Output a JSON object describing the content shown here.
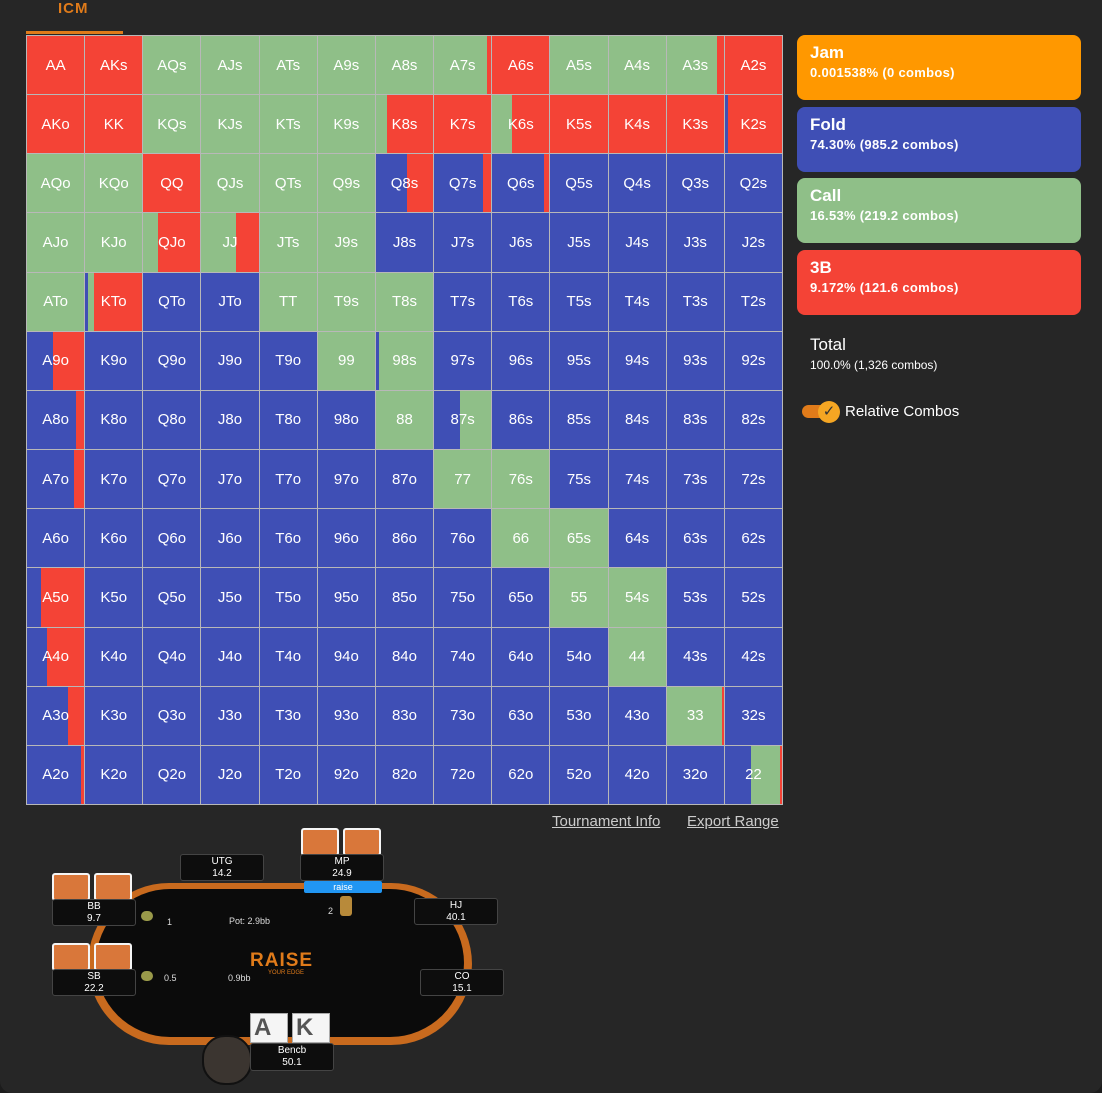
{
  "tab": "ICM",
  "actions": [
    {
      "name": "Jam",
      "stats": "0.001538% (0 combos)",
      "color": "#ff9800"
    },
    {
      "name": "Fold",
      "stats": "74.30% (985.2 combos)",
      "color": "#3f4fb5"
    },
    {
      "name": "Call",
      "stats": "16.53% (219.2 combos)",
      "color": "#8fbf88"
    },
    {
      "name": "3B",
      "stats": "9.172% (121.6 combos)",
      "color": "#f44336"
    }
  ],
  "total": {
    "label": "Total",
    "stats": "100.0% (1,326 combos)"
  },
  "toggle": "Relative Combos",
  "links": [
    "Tournament Info",
    "Export Range"
  ],
  "grid": {
    "rows": [
      [
        [
          "AA",
          0,
          0,
          100
        ],
        [
          "AKs",
          0,
          0,
          100
        ],
        [
          "AQs",
          0,
          100,
          0
        ],
        [
          "AJs",
          0,
          100,
          0
        ],
        [
          "ATs",
          0,
          100,
          0
        ],
        [
          "A9s",
          0,
          100,
          0
        ],
        [
          "A8s",
          0,
          100,
          0
        ],
        [
          "A7s",
          0,
          93,
          7
        ],
        [
          "A6s",
          0,
          0,
          100
        ],
        [
          "A5s",
          0,
          100,
          0
        ],
        [
          "A4s",
          0,
          100,
          0
        ],
        [
          "A3s",
          0,
          88,
          12
        ],
        [
          "A2s",
          0,
          0,
          100
        ]
      ],
      [
        [
          "AKo",
          0,
          0,
          100
        ],
        [
          "KK",
          0,
          0,
          100
        ],
        [
          "KQs",
          0,
          100,
          0
        ],
        [
          "KJs",
          0,
          100,
          0
        ],
        [
          "KTs",
          0,
          100,
          0
        ],
        [
          "K9s",
          0,
          100,
          0
        ],
        [
          "K8s",
          0,
          20,
          80
        ],
        [
          "K7s",
          0,
          0,
          100
        ],
        [
          "K6s",
          0,
          35,
          65
        ],
        [
          "K5s",
          0,
          0,
          100
        ],
        [
          "K4s",
          0,
          0,
          100
        ],
        [
          "K3s",
          0,
          0,
          100
        ],
        [
          "K2s",
          5,
          0,
          95
        ]
      ],
      [
        [
          "AQo",
          0,
          100,
          0
        ],
        [
          "KQo",
          0,
          100,
          0
        ],
        [
          "QQ",
          0,
          0,
          100
        ],
        [
          "QJs",
          0,
          100,
          0
        ],
        [
          "QTs",
          0,
          100,
          0
        ],
        [
          "Q9s",
          0,
          100,
          0
        ],
        [
          "Q8s",
          55,
          0,
          45
        ],
        [
          "Q7s",
          85,
          0,
          15
        ],
        [
          "Q6s",
          90,
          0,
          10
        ],
        [
          "Q5s",
          100,
          0,
          0
        ],
        [
          "Q4s",
          100,
          0,
          0
        ],
        [
          "Q3s",
          100,
          0,
          0
        ],
        [
          "Q2s",
          100,
          0,
          0
        ]
      ],
      [
        [
          "AJo",
          0,
          100,
          0
        ],
        [
          "KJo",
          0,
          100,
          0
        ],
        [
          "QJo",
          0,
          25,
          75
        ],
        [
          "JJ",
          0,
          60,
          40
        ],
        [
          "JTs",
          0,
          100,
          0
        ],
        [
          "J9s",
          0,
          100,
          0
        ],
        [
          "J8s",
          100,
          0,
          0
        ],
        [
          "J7s",
          100,
          0,
          0
        ],
        [
          "J6s",
          100,
          0,
          0
        ],
        [
          "J5s",
          100,
          0,
          0
        ],
        [
          "J4s",
          100,
          0,
          0
        ],
        [
          "J3s",
          100,
          0,
          0
        ],
        [
          "J2s",
          100,
          0,
          0
        ]
      ],
      [
        [
          "ATo",
          0,
          100,
          0
        ],
        [
          "KTo",
          5,
          10,
          85
        ],
        [
          "QTo",
          100,
          0,
          0
        ],
        [
          "JTo",
          100,
          0,
          0
        ],
        [
          "TT",
          0,
          100,
          0
        ],
        [
          "T9s",
          0,
          100,
          0
        ],
        [
          "T8s",
          0,
          100,
          0
        ],
        [
          "T7s",
          100,
          0,
          0
        ],
        [
          "T6s",
          100,
          0,
          0
        ],
        [
          "T5s",
          100,
          0,
          0
        ],
        [
          "T4s",
          100,
          0,
          0
        ],
        [
          "T3s",
          100,
          0,
          0
        ],
        [
          "T2s",
          100,
          0,
          0
        ]
      ],
      [
        [
          "A9o",
          45,
          0,
          55
        ],
        [
          "K9o",
          100,
          0,
          0
        ],
        [
          "Q9o",
          100,
          0,
          0
        ],
        [
          "J9o",
          100,
          0,
          0
        ],
        [
          "T9o",
          100,
          0,
          0
        ],
        [
          "99",
          0,
          100,
          0
        ],
        [
          "98s",
          5,
          95,
          0
        ],
        [
          "97s",
          100,
          0,
          0
        ],
        [
          "96s",
          100,
          0,
          0
        ],
        [
          "95s",
          100,
          0,
          0
        ],
        [
          "94s",
          100,
          0,
          0
        ],
        [
          "93s",
          100,
          0,
          0
        ],
        [
          "92s",
          100,
          0,
          0
        ]
      ],
      [
        [
          "A8o",
          85,
          0,
          15
        ],
        [
          "K8o",
          100,
          0,
          0
        ],
        [
          "Q8o",
          100,
          0,
          0
        ],
        [
          "J8o",
          100,
          0,
          0
        ],
        [
          "T8o",
          100,
          0,
          0
        ],
        [
          "98o",
          100,
          0,
          0
        ],
        [
          "88",
          0,
          100,
          0
        ],
        [
          "87s",
          45,
          55,
          0
        ],
        [
          "86s",
          100,
          0,
          0
        ],
        [
          "85s",
          100,
          0,
          0
        ],
        [
          "84s",
          100,
          0,
          0
        ],
        [
          "83s",
          100,
          0,
          0
        ],
        [
          "82s",
          100,
          0,
          0
        ]
      ],
      [
        [
          "A7o",
          83,
          0,
          17
        ],
        [
          "K7o",
          100,
          0,
          0
        ],
        [
          "Q7o",
          100,
          0,
          0
        ],
        [
          "J7o",
          100,
          0,
          0
        ],
        [
          "T7o",
          100,
          0,
          0
        ],
        [
          "97o",
          100,
          0,
          0
        ],
        [
          "87o",
          100,
          0,
          0
        ],
        [
          "77",
          0,
          100,
          0
        ],
        [
          "76s",
          0,
          100,
          0
        ],
        [
          "75s",
          100,
          0,
          0
        ],
        [
          "74s",
          100,
          0,
          0
        ],
        [
          "73s",
          100,
          0,
          0
        ],
        [
          "72s",
          100,
          0,
          0
        ]
      ],
      [
        [
          "A6o",
          100,
          0,
          0
        ],
        [
          "K6o",
          100,
          0,
          0
        ],
        [
          "Q6o",
          100,
          0,
          0
        ],
        [
          "J6o",
          100,
          0,
          0
        ],
        [
          "T6o",
          100,
          0,
          0
        ],
        [
          "96o",
          100,
          0,
          0
        ],
        [
          "86o",
          100,
          0,
          0
        ],
        [
          "76o",
          100,
          0,
          0
        ],
        [
          "66",
          0,
          100,
          0
        ],
        [
          "65s",
          0,
          100,
          0
        ],
        [
          "64s",
          100,
          0,
          0
        ],
        [
          "63s",
          100,
          0,
          0
        ],
        [
          "62s",
          100,
          0,
          0
        ]
      ],
      [
        [
          "A5o",
          25,
          0,
          75
        ],
        [
          "K5o",
          100,
          0,
          0
        ],
        [
          "Q5o",
          100,
          0,
          0
        ],
        [
          "J5o",
          100,
          0,
          0
        ],
        [
          "T5o",
          100,
          0,
          0
        ],
        [
          "95o",
          100,
          0,
          0
        ],
        [
          "85o",
          100,
          0,
          0
        ],
        [
          "75o",
          100,
          0,
          0
        ],
        [
          "65o",
          100,
          0,
          0
        ],
        [
          "55",
          0,
          100,
          0
        ],
        [
          "54s",
          0,
          100,
          0
        ],
        [
          "53s",
          100,
          0,
          0
        ],
        [
          "52s",
          100,
          0,
          0
        ]
      ],
      [
        [
          "A4o",
          35,
          0,
          65
        ],
        [
          "K4o",
          100,
          0,
          0
        ],
        [
          "Q4o",
          100,
          0,
          0
        ],
        [
          "J4o",
          100,
          0,
          0
        ],
        [
          "T4o",
          100,
          0,
          0
        ],
        [
          "94o",
          100,
          0,
          0
        ],
        [
          "84o",
          100,
          0,
          0
        ],
        [
          "74o",
          100,
          0,
          0
        ],
        [
          "64o",
          100,
          0,
          0
        ],
        [
          "54o",
          100,
          0,
          0
        ],
        [
          "44",
          0,
          100,
          0
        ],
        [
          "43s",
          100,
          0,
          0
        ],
        [
          "42s",
          100,
          0,
          0
        ]
      ],
      [
        [
          "A3o",
          72,
          0,
          28
        ],
        [
          "K3o",
          100,
          0,
          0
        ],
        [
          "Q3o",
          100,
          0,
          0
        ],
        [
          "J3o",
          100,
          0,
          0
        ],
        [
          "T3o",
          100,
          0,
          0
        ],
        [
          "93o",
          100,
          0,
          0
        ],
        [
          "83o",
          100,
          0,
          0
        ],
        [
          "73o",
          100,
          0,
          0
        ],
        [
          "63o",
          100,
          0,
          0
        ],
        [
          "53o",
          100,
          0,
          0
        ],
        [
          "43o",
          100,
          0,
          0
        ],
        [
          "33",
          0,
          97,
          3
        ],
        [
          "32s",
          100,
          0,
          0
        ]
      ],
      [
        [
          "A2o",
          95,
          0,
          5
        ],
        [
          "K2o",
          100,
          0,
          0
        ],
        [
          "Q2o",
          100,
          0,
          0
        ],
        [
          "J2o",
          100,
          0,
          0
        ],
        [
          "T2o",
          100,
          0,
          0
        ],
        [
          "92o",
          100,
          0,
          0
        ],
        [
          "82o",
          100,
          0,
          0
        ],
        [
          "72o",
          100,
          0,
          0
        ],
        [
          "62o",
          100,
          0,
          0
        ],
        [
          "52o",
          100,
          0,
          0
        ],
        [
          "42o",
          100,
          0,
          0
        ],
        [
          "32o",
          100,
          0,
          0
        ],
        [
          "22",
          45,
          52,
          3
        ]
      ]
    ]
  },
  "table": {
    "seats": [
      {
        "position": "UTG",
        "stack": 14.2
      },
      {
        "position": "MP",
        "stack": 24.9
      },
      {
        "position": "HJ",
        "stack": 40.1
      },
      {
        "position": "CO",
        "stack": 15.1
      },
      {
        "position": "SB",
        "stack": 22.2
      },
      {
        "position": "BB",
        "stack": 9.7
      }
    ],
    "mp_action": "raise",
    "bets": [
      1,
      2,
      0.5
    ],
    "pot": "Pot: 2.9bb",
    "center": "0.9bb",
    "logo": "RAISE",
    "logo_sub": "YOUR EDGE",
    "hero": {
      "name": "Bencb",
      "stack": 50.1,
      "cards": [
        "A",
        "K"
      ]
    }
  }
}
